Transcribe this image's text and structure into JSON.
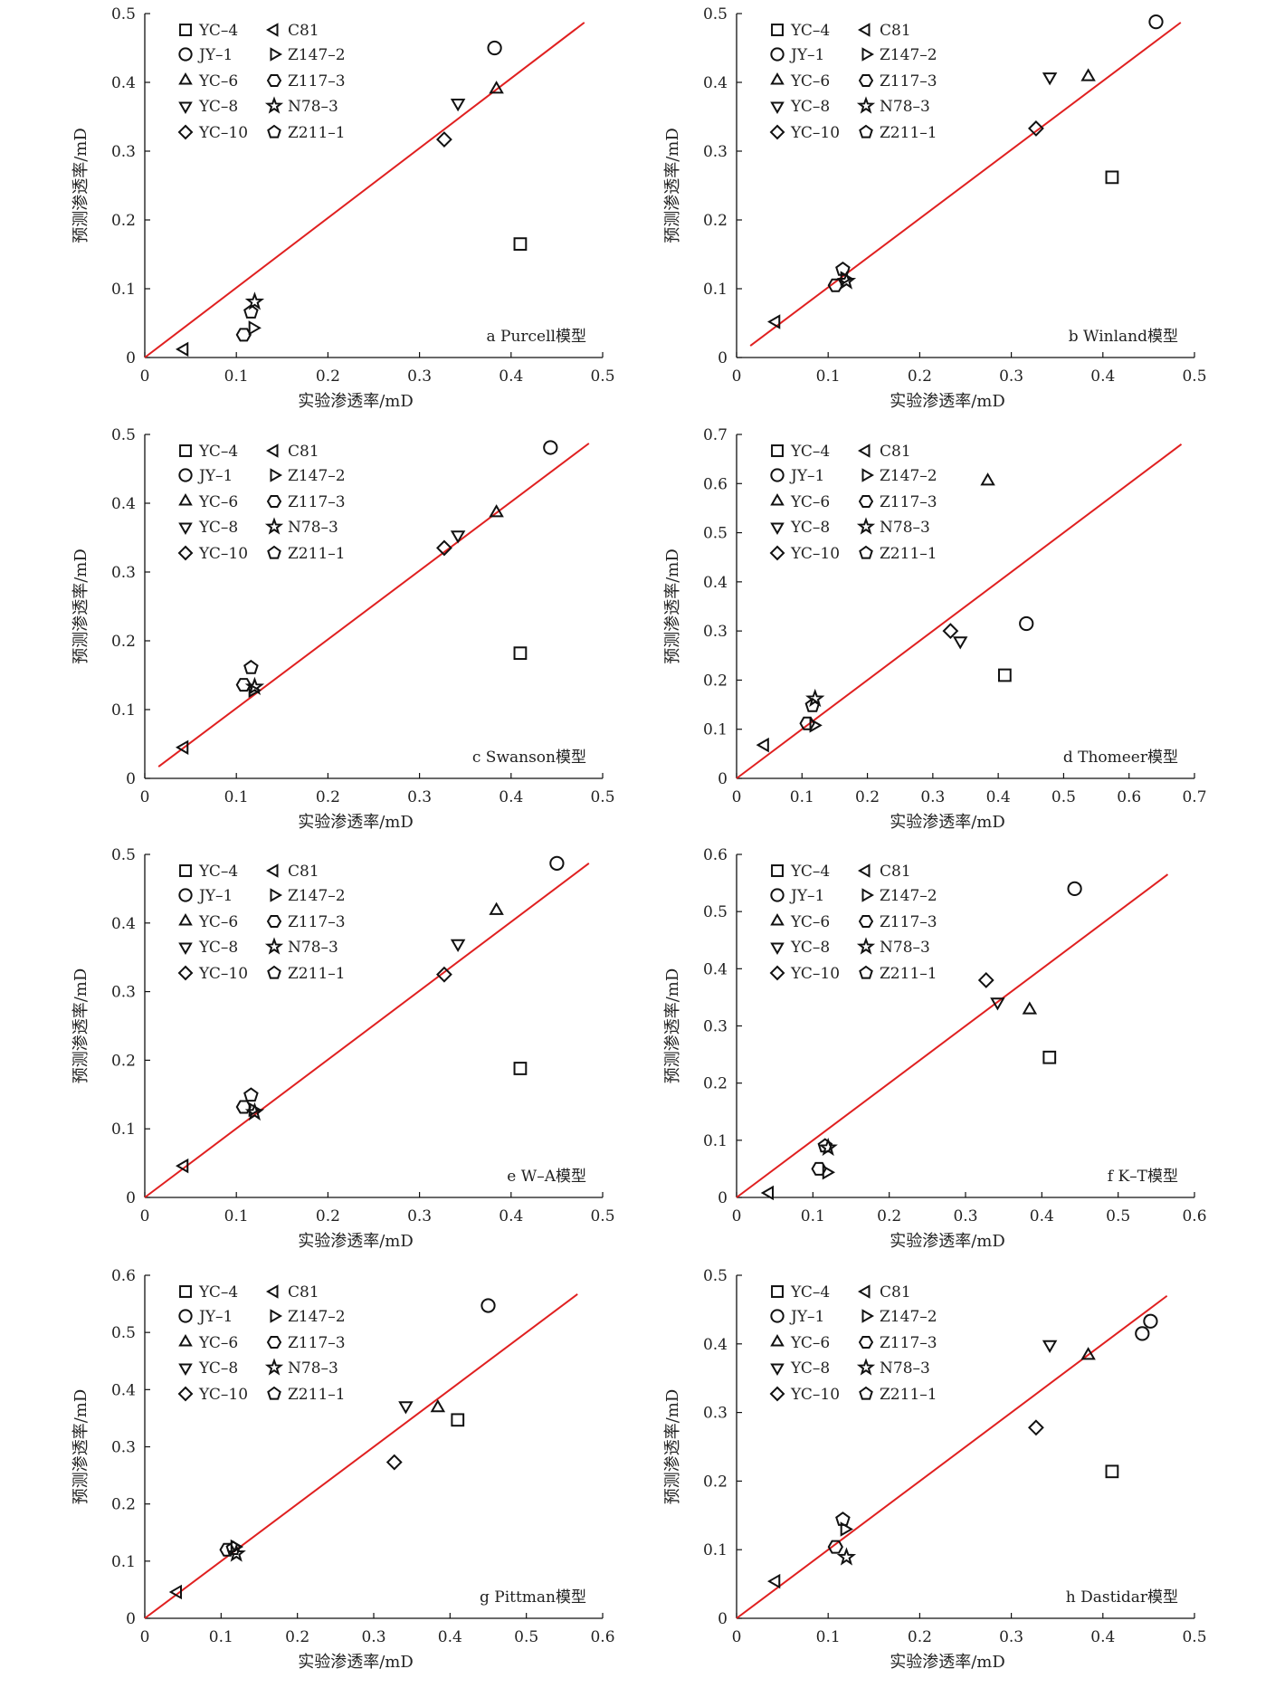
{
  "legend_entries": [
    {
      "label": "YC–4",
      "marker": "square"
    },
    {
      "label": "JY–1",
      "marker": "circle"
    },
    {
      "label": "YC–6",
      "marker": "triangle-up"
    },
    {
      "label": "YC–8",
      "marker": "triangle-down"
    },
    {
      "label": "YC–10",
      "marker": "diamond"
    },
    {
      "label": "C81",
      "marker": "triangle-left"
    },
    {
      "label": "Z147–2",
      "marker": "triangle-right"
    },
    {
      "label": "Z117–3",
      "marker": "hexagon"
    },
    {
      "label": "N78–3",
      "marker": "star"
    },
    {
      "label": "Z211–1",
      "marker": "pentagon"
    }
  ],
  "colors": {
    "fit_line": "#e02020",
    "marker_stroke": "#111111",
    "axis": "#111111"
  },
  "chart_data": [
    {
      "type": "scatter",
      "panel_label": "a Purcell模型",
      "xlabel": "实验渗透率/mD",
      "ylabel": "预测渗透率/mD",
      "xlim": [
        0,
        0.5
      ],
      "ylim": [
        0,
        0.5
      ],
      "xticks": [
        "0",
        "0.1",
        "0.2",
        "0.3",
        "0.4",
        "0.5"
      ],
      "yticks": [
        "0",
        "0.1",
        "0.2",
        "0.3",
        "0.4",
        "0.5"
      ],
      "line": [
        [
          0,
          0
        ],
        [
          0.48,
          0.487
        ]
      ],
      "points": [
        {
          "sample": "YC–4",
          "x": 0.41,
          "y": 0.165
        },
        {
          "sample": "JY–1",
          "x": 0.382,
          "y": 0.45
        },
        {
          "sample": "YC–6",
          "x": 0.384,
          "y": 0.39
        },
        {
          "sample": "YC–8",
          "x": 0.342,
          "y": 0.37
        },
        {
          "sample": "YC–10",
          "x": 0.327,
          "y": 0.317
        },
        {
          "sample": "C81",
          "x": 0.043,
          "y": 0.012
        },
        {
          "sample": "Z147–2",
          "x": 0.118,
          "y": 0.043
        },
        {
          "sample": "Z117–3",
          "x": 0.108,
          "y": 0.033
        },
        {
          "sample": "N78–3",
          "x": 0.12,
          "y": 0.081
        },
        {
          "sample": "Z211–1",
          "x": 0.116,
          "y": 0.066
        }
      ]
    },
    {
      "type": "scatter",
      "panel_label": "b Winland模型",
      "xlabel": "实验渗透率/mD",
      "ylabel": "预测渗透率/mD",
      "xlim": [
        0,
        0.5
      ],
      "ylim": [
        0,
        0.5
      ],
      "xticks": [
        "0",
        "0.1",
        "0.2",
        "0.3",
        "0.4",
        "0.5"
      ],
      "yticks": [
        "0",
        "0.1",
        "0.2",
        "0.3",
        "0.4",
        "0.5"
      ],
      "line": [
        [
          0.015,
          0.017
        ],
        [
          0.485,
          0.487
        ]
      ],
      "points": [
        {
          "sample": "YC–4",
          "x": 0.41,
          "y": 0.262
        },
        {
          "sample": "JY–1",
          "x": 0.458,
          "y": 0.488
        },
        {
          "sample": "YC–6",
          "x": 0.384,
          "y": 0.408
        },
        {
          "sample": "YC–8",
          "x": 0.342,
          "y": 0.408
        },
        {
          "sample": "YC–10",
          "x": 0.327,
          "y": 0.333
        },
        {
          "sample": "C81",
          "x": 0.043,
          "y": 0.052
        },
        {
          "sample": "Z147–2",
          "x": 0.118,
          "y": 0.115
        },
        {
          "sample": "Z117–3",
          "x": 0.108,
          "y": 0.105
        },
        {
          "sample": "N78–3",
          "x": 0.12,
          "y": 0.111
        },
        {
          "sample": "Z211–1",
          "x": 0.116,
          "y": 0.128
        }
      ]
    },
    {
      "type": "scatter",
      "panel_label": "c Swanson模型",
      "xlabel": "实验渗透率/mD",
      "ylabel": "预测渗透率/mD",
      "xlim": [
        0,
        0.5
      ],
      "ylim": [
        0,
        0.5
      ],
      "xticks": [
        "0",
        "0.1",
        "0.2",
        "0.3",
        "0.4",
        "0.5"
      ],
      "yticks": [
        "0",
        "0.1",
        "0.2",
        "0.3",
        "0.4",
        "0.5"
      ],
      "line": [
        [
          0.015,
          0.017
        ],
        [
          0.485,
          0.487
        ]
      ],
      "points": [
        {
          "sample": "YC–4",
          "x": 0.41,
          "y": 0.182
        },
        {
          "sample": "JY–1",
          "x": 0.443,
          "y": 0.481
        },
        {
          "sample": "YC–6",
          "x": 0.384,
          "y": 0.386
        },
        {
          "sample": "YC–8",
          "x": 0.342,
          "y": 0.354
        },
        {
          "sample": "YC–10",
          "x": 0.327,
          "y": 0.335
        },
        {
          "sample": "C81",
          "x": 0.043,
          "y": 0.045
        },
        {
          "sample": "Z147–2",
          "x": 0.118,
          "y": 0.128
        },
        {
          "sample": "Z117–3",
          "x": 0.108,
          "y": 0.136
        },
        {
          "sample": "N78–3",
          "x": 0.12,
          "y": 0.133
        },
        {
          "sample": "Z211–1",
          "x": 0.116,
          "y": 0.161
        }
      ]
    },
    {
      "type": "scatter",
      "panel_label": "d Thomeer模型",
      "xlabel": "实验渗透率/mD",
      "ylabel": "预测渗透率/mD",
      "xlim": [
        0,
        0.7
      ],
      "ylim": [
        0,
        0.7
      ],
      "xticks": [
        "0",
        "0.1",
        "0.2",
        "0.3",
        "0.4",
        "0.5",
        "0.6",
        "0.7"
      ],
      "yticks": [
        "0",
        "0.1",
        "0.2",
        "0.3",
        "0.4",
        "0.5",
        "0.6",
        "0.7"
      ],
      "line": [
        [
          0,
          0
        ],
        [
          0.68,
          0.68
        ]
      ],
      "points": [
        {
          "sample": "YC–4",
          "x": 0.41,
          "y": 0.21
        },
        {
          "sample": "JY–1",
          "x": 0.443,
          "y": 0.315
        },
        {
          "sample": "YC–6",
          "x": 0.384,
          "y": 0.605
        },
        {
          "sample": "YC–8",
          "x": 0.342,
          "y": 0.28
        },
        {
          "sample": "YC–10",
          "x": 0.327,
          "y": 0.3
        },
        {
          "sample": "C81",
          "x": 0.043,
          "y": 0.068
        },
        {
          "sample": "Z147–2",
          "x": 0.118,
          "y": 0.108
        },
        {
          "sample": "Z117–3",
          "x": 0.108,
          "y": 0.112
        },
        {
          "sample": "N78–3",
          "x": 0.12,
          "y": 0.162
        },
        {
          "sample": "Z211–1",
          "x": 0.116,
          "y": 0.148
        }
      ]
    },
    {
      "type": "scatter",
      "panel_label": "e W–A模型",
      "xlabel": "实验渗透率/mD",
      "ylabel": "预测渗透率/mD",
      "xlim": [
        0,
        0.5
      ],
      "ylim": [
        0,
        0.5
      ],
      "xticks": [
        "0",
        "0.1",
        "0.2",
        "0.3",
        "0.4",
        "0.5"
      ],
      "yticks": [
        "0",
        "0.1",
        "0.2",
        "0.3",
        "0.4",
        "0.5"
      ],
      "line": [
        [
          0,
          0
        ],
        [
          0.485,
          0.487
        ]
      ],
      "points": [
        {
          "sample": "YC–4",
          "x": 0.41,
          "y": 0.188
        },
        {
          "sample": "JY–1",
          "x": 0.45,
          "y": 0.487
        },
        {
          "sample": "YC–6",
          "x": 0.384,
          "y": 0.418
        },
        {
          "sample": "YC–8",
          "x": 0.342,
          "y": 0.37
        },
        {
          "sample": "YC–10",
          "x": 0.327,
          "y": 0.325
        },
        {
          "sample": "C81",
          "x": 0.043,
          "y": 0.046
        },
        {
          "sample": "Z147–2",
          "x": 0.118,
          "y": 0.128
        },
        {
          "sample": "Z117–3",
          "x": 0.108,
          "y": 0.132
        },
        {
          "sample": "N78–3",
          "x": 0.12,
          "y": 0.124
        },
        {
          "sample": "Z211–1",
          "x": 0.116,
          "y": 0.149
        }
      ]
    },
    {
      "type": "scatter",
      "panel_label": "f K–T模型",
      "xlabel": "实验渗透率/mD",
      "ylabel": "预测渗透率/mD",
      "xlim": [
        0,
        0.6
      ],
      "ylim": [
        0,
        0.6
      ],
      "xticks": [
        "0",
        "0.1",
        "0.2",
        "0.3",
        "0.4",
        "0.5",
        "0.6"
      ],
      "yticks": [
        "0",
        "0.1",
        "0.2",
        "0.3",
        "0.4",
        "0.5",
        "0.6"
      ],
      "line": [
        [
          0,
          0
        ],
        [
          0.565,
          0.565
        ]
      ],
      "points": [
        {
          "sample": "YC–4",
          "x": 0.41,
          "y": 0.245
        },
        {
          "sample": "JY–1",
          "x": 0.443,
          "y": 0.54
        },
        {
          "sample": "YC–6",
          "x": 0.384,
          "y": 0.328
        },
        {
          "sample": "YC–8",
          "x": 0.342,
          "y": 0.342
        },
        {
          "sample": "YC–10",
          "x": 0.327,
          "y": 0.38
        },
        {
          "sample": "C81",
          "x": 0.043,
          "y": 0.008
        },
        {
          "sample": "Z147–2",
          "x": 0.118,
          "y": 0.044
        },
        {
          "sample": "Z117–3",
          "x": 0.108,
          "y": 0.05
        },
        {
          "sample": "N78–3",
          "x": 0.12,
          "y": 0.087
        },
        {
          "sample": "Z211–1",
          "x": 0.116,
          "y": 0.09
        }
      ]
    },
    {
      "type": "scatter",
      "panel_label": "g Pittman模型",
      "xlabel": "实验渗透率/mD",
      "ylabel": "预测渗透率/mD",
      "xlim": [
        0,
        0.6
      ],
      "ylim": [
        0,
        0.6
      ],
      "xticks": [
        "0",
        "0.1",
        "0.2",
        "0.3",
        "0.4",
        "0.5",
        "0.6"
      ],
      "yticks": [
        "0",
        "0.1",
        "0.2",
        "0.3",
        "0.4",
        "0.5",
        "0.6"
      ],
      "line": [
        [
          0,
          0
        ],
        [
          0.567,
          0.567
        ]
      ],
      "points": [
        {
          "sample": "YC–4",
          "x": 0.41,
          "y": 0.347
        },
        {
          "sample": "JY–1",
          "x": 0.45,
          "y": 0.547
        },
        {
          "sample": "YC–6",
          "x": 0.384,
          "y": 0.368
        },
        {
          "sample": "YC–8",
          "x": 0.342,
          "y": 0.372
        },
        {
          "sample": "YC–10",
          "x": 0.327,
          "y": 0.273
        },
        {
          "sample": "C81",
          "x": 0.043,
          "y": 0.046
        },
        {
          "sample": "Z147–2",
          "x": 0.118,
          "y": 0.125
        },
        {
          "sample": "Z117–3",
          "x": 0.108,
          "y": 0.12
        },
        {
          "sample": "N78–3",
          "x": 0.12,
          "y": 0.113
        },
        {
          "sample": "Z211–1",
          "x": 0.116,
          "y": 0.122
        }
      ]
    },
    {
      "type": "scatter",
      "panel_label": "h Dastidar模型",
      "xlabel": "实验渗透率/mD",
      "ylabel": "预测渗透率/mD",
      "xlim": [
        0,
        0.5
      ],
      "ylim": [
        0,
        0.5
      ],
      "xticks": [
        "0",
        "0.1",
        "0.2",
        "0.3",
        "0.4",
        "0.5"
      ],
      "yticks": [
        "0",
        "0.1",
        "0.2",
        "0.3",
        "0.4",
        "0.5"
      ],
      "line": [
        [
          0,
          0
        ],
        [
          0.47,
          0.47
        ]
      ],
      "points": [
        {
          "sample": "YC–4",
          "x": 0.41,
          "y": 0.214
        },
        {
          "sample": "JY–1",
          "x": 0.443,
          "y": 0.415
        },
        {
          "sample": "JY–1",
          "x": 0.452,
          "y": 0.433
        },
        {
          "sample": "YC–6",
          "x": 0.384,
          "y": 0.383
        },
        {
          "sample": "YC–8",
          "x": 0.342,
          "y": 0.399
        },
        {
          "sample": "YC–10",
          "x": 0.327,
          "y": 0.278
        },
        {
          "sample": "C81",
          "x": 0.043,
          "y": 0.054
        },
        {
          "sample": "Z147–2",
          "x": 0.118,
          "y": 0.13
        },
        {
          "sample": "Z117–3",
          "x": 0.108,
          "y": 0.104
        },
        {
          "sample": "N78–3",
          "x": 0.12,
          "y": 0.089
        },
        {
          "sample": "Z211–1",
          "x": 0.116,
          "y": 0.144
        }
      ]
    }
  ]
}
